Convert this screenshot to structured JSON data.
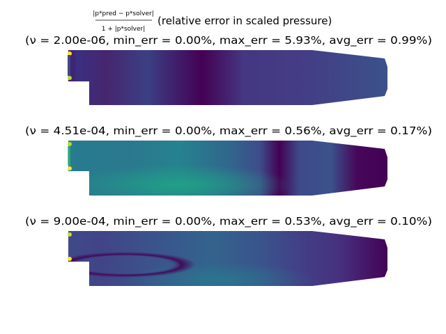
{
  "figure": {
    "title_fraction_numerator": "|p*pred − p*solver|",
    "title_fraction_denominator": "1 + |p*solver|",
    "title_suffix": "(relative error in scaled pressure)"
  },
  "chart_data": [
    {
      "type": "heatmap",
      "title": "(ν = 2.00e-06, min_err = 0.00%, max_err = 5.93%, avg_err = 0.99%)",
      "colormap": "viridis",
      "nu": "2.00e-06",
      "min_err_pct": 0.0,
      "max_err_pct": 5.93,
      "avg_err_pct": 0.99,
      "axes_visible": false
    },
    {
      "type": "heatmap",
      "title": "(ν = 4.51e-04, min_err = 0.00%, max_err = 0.56%, avg_err = 0.17%)",
      "colormap": "viridis",
      "nu": "4.51e-04",
      "min_err_pct": 0.0,
      "max_err_pct": 0.56,
      "avg_err_pct": 0.17,
      "axes_visible": false
    },
    {
      "type": "heatmap",
      "title": "(ν = 9.00e-04, min_err = 0.00%, max_err = 0.53%, avg_err = 0.10%)",
      "colormap": "viridis",
      "nu": "9.00e-04",
      "min_err_pct": 0.0,
      "max_err_pct": 0.53,
      "avg_err_pct": 0.1,
      "axes_visible": false
    }
  ]
}
